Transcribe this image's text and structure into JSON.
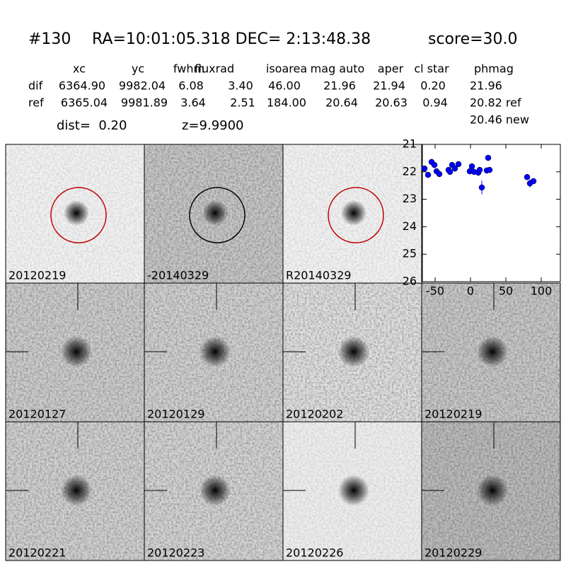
{
  "header": {
    "id": "#130",
    "coords": "RA=10:01:05.318 DEC= 2:13:48.38",
    "score": "score=30.0"
  },
  "table": {
    "columns": [
      "xc",
      "yc",
      "fwhm",
      "fluxrad",
      "isoarea",
      "mag auto",
      "aper",
      "cl star",
      "phmag"
    ],
    "rows": [
      {
        "label": "dif",
        "cells": [
          "6364.90",
          "9982.04",
          "6.08",
          "3.40",
          "46.00",
          "21.96",
          "21.94",
          "0.20",
          "21.96"
        ]
      },
      {
        "label": "ref",
        "cells": [
          "6365.04",
          "9981.89",
          "3.64",
          "2.51",
          "184.00",
          "20.64",
          "20.63",
          "0.94",
          "20.82 ref"
        ]
      }
    ],
    "extra": "20.46 new"
  },
  "dist": "dist=  0.20",
  "z": "z=9.9900",
  "stamps": [
    "20120219",
    "-20140329",
    "R20140329",
    "20120127",
    "20120129",
    "20120202",
    "20120219",
    "20120221",
    "20120223",
    "20120226",
    "20120229"
  ],
  "chart_data": {
    "type": "scatter",
    "series": [
      {
        "color": "#0000ff",
        "x": [
          -65,
          -60,
          -55,
          -51,
          -48,
          -44,
          -31,
          -29,
          -26,
          -22,
          -17,
          -1,
          2,
          5,
          11,
          13,
          16,
          23,
          25,
          27,
          80,
          84,
          89
        ],
        "values": [
          21.88,
          22.11,
          21.64,
          21.75,
          21.98,
          22.08,
          21.93,
          22.0,
          21.75,
          21.88,
          21.72,
          21.98,
          21.8,
          22.0,
          22.03,
          21.93,
          22.57,
          21.95,
          21.49,
          21.93,
          22.19,
          22.42,
          22.34
        ],
        "errors": [
          0.06,
          0.08,
          0.06,
          0.06,
          0.06,
          0.06,
          0.07,
          0.07,
          0.06,
          0.06,
          0.06,
          0.08,
          0.08,
          0.08,
          0.1,
          0.1,
          0.25,
          0.1,
          0.06,
          0.06,
          0.1,
          0.15,
          0.1
        ]
      }
    ],
    "xlim": [
      -68,
      127
    ],
    "xticks": [
      -50,
      0,
      50,
      100
    ],
    "ylim": [
      26,
      21
    ],
    "yticks": [
      21,
      22,
      23,
      24,
      25,
      26
    ]
  }
}
